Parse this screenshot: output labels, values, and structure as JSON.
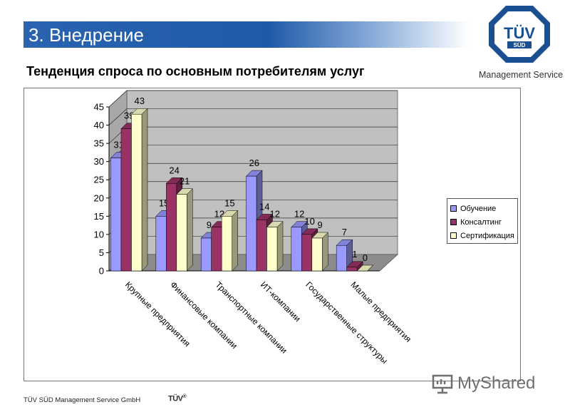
{
  "slide": {
    "section_title": "3. Внедрение",
    "chart_heading": "Тенденция спроса по основным потребителям услуг",
    "logo_mark": "TÜV",
    "logo_sub": "SÜD",
    "logo_caption": "Management Service",
    "footer_text": "TÜV SÜD Management Service GmbH",
    "footer_logo": "TÜV",
    "footer_logo_mark": "®",
    "watermark": "MyShared"
  },
  "colors": {
    "header_blue": "#1f5aa8",
    "logo_blue": "#1a4f92",
    "wall": "#c0c0c0",
    "floor": "#8c8c8c"
  },
  "chart_data": {
    "type": "bar",
    "title": "",
    "categories": [
      "Крупные предприятия",
      "Финансовые компании",
      "Транспортные компании",
      "ИТ-компании",
      "Государственные структуры",
      "Малые предприятия"
    ],
    "series": [
      {
        "name": "Обучение",
        "values": [
          31,
          15,
          9,
          26,
          12,
          7
        ],
        "color": "#9999ff"
      },
      {
        "name": "Консалтинг",
        "values": [
          39,
          24,
          12,
          14,
          10,
          1
        ],
        "color": "#993366"
      },
      {
        "name": "Сертификация",
        "values": [
          43,
          21,
          15,
          12,
          9,
          0
        ],
        "color": "#ffffcc"
      }
    ],
    "yticks": [
      0,
      5,
      10,
      15,
      20,
      25,
      30,
      35,
      40,
      45
    ],
    "ylim": [
      0,
      45
    ],
    "grid": true,
    "legend_position": "right",
    "style": "3d-column"
  }
}
